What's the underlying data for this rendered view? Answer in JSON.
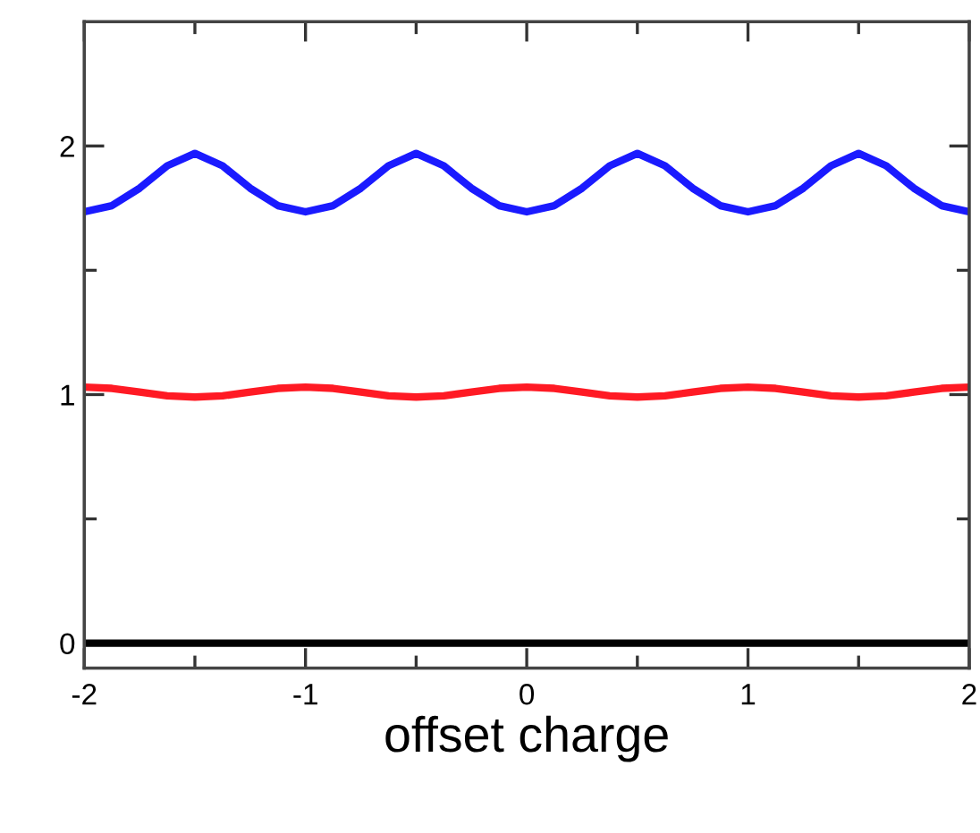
{
  "chart_data": {
    "type": "line",
    "xlabel": "offset charge",
    "x": [
      -2,
      -1.875,
      -1.75,
      -1.625,
      -1.5,
      -1.375,
      -1.25,
      -1.125,
      -1,
      -0.875,
      -0.75,
      -0.625,
      -0.5,
      -0.375,
      -0.25,
      -0.125,
      0,
      0.125,
      0.25,
      0.375,
      0.5,
      0.625,
      0.75,
      0.875,
      1,
      1.125,
      1.25,
      1.375,
      1.5,
      1.625,
      1.75,
      1.875,
      2
    ],
    "series": [
      {
        "color": "#1a1aff",
        "values": [
          1.735,
          1.76,
          1.83,
          1.92,
          1.97,
          1.92,
          1.83,
          1.76,
          1.735,
          1.76,
          1.83,
          1.92,
          1.97,
          1.92,
          1.83,
          1.76,
          1.735,
          1.76,
          1.83,
          1.92,
          1.97,
          1.92,
          1.83,
          1.76,
          1.735,
          1.76,
          1.83,
          1.92,
          1.97,
          1.92,
          1.83,
          1.76,
          1.735
        ]
      },
      {
        "color": "#ff1a24",
        "values": [
          1.03,
          1.025,
          1.01,
          0.995,
          0.99,
          0.995,
          1.01,
          1.025,
          1.03,
          1.025,
          1.01,
          0.995,
          0.99,
          0.995,
          1.01,
          1.025,
          1.03,
          1.025,
          1.01,
          0.995,
          0.99,
          0.995,
          1.01,
          1.025,
          1.03,
          1.025,
          1.01,
          0.995,
          0.99,
          0.995,
          1.01,
          1.025,
          1.03
        ]
      },
      {
        "color": "#000000",
        "x": [
          -2,
          2
        ],
        "values": [
          0,
          0
        ]
      }
    ],
    "xlim": [
      -2,
      2
    ],
    "ylim": [
      -0.1,
      2.5
    ],
    "xticks": [
      -2,
      {
        "value": -1.5,
        "label": null
      },
      -1,
      {
        "value": -0.5,
        "label": null
      },
      0,
      {
        "value": 0.5,
        "label": null
      },
      1,
      {
        "value": 1.5,
        "label": null
      },
      2
    ],
    "yticks": [
      0,
      {
        "value": 0.5,
        "label": null
      },
      1,
      {
        "value": 1.5,
        "label": null
      },
      2
    ],
    "grid": false,
    "legend": false,
    "marker": "none",
    "line_style": "solid"
  }
}
